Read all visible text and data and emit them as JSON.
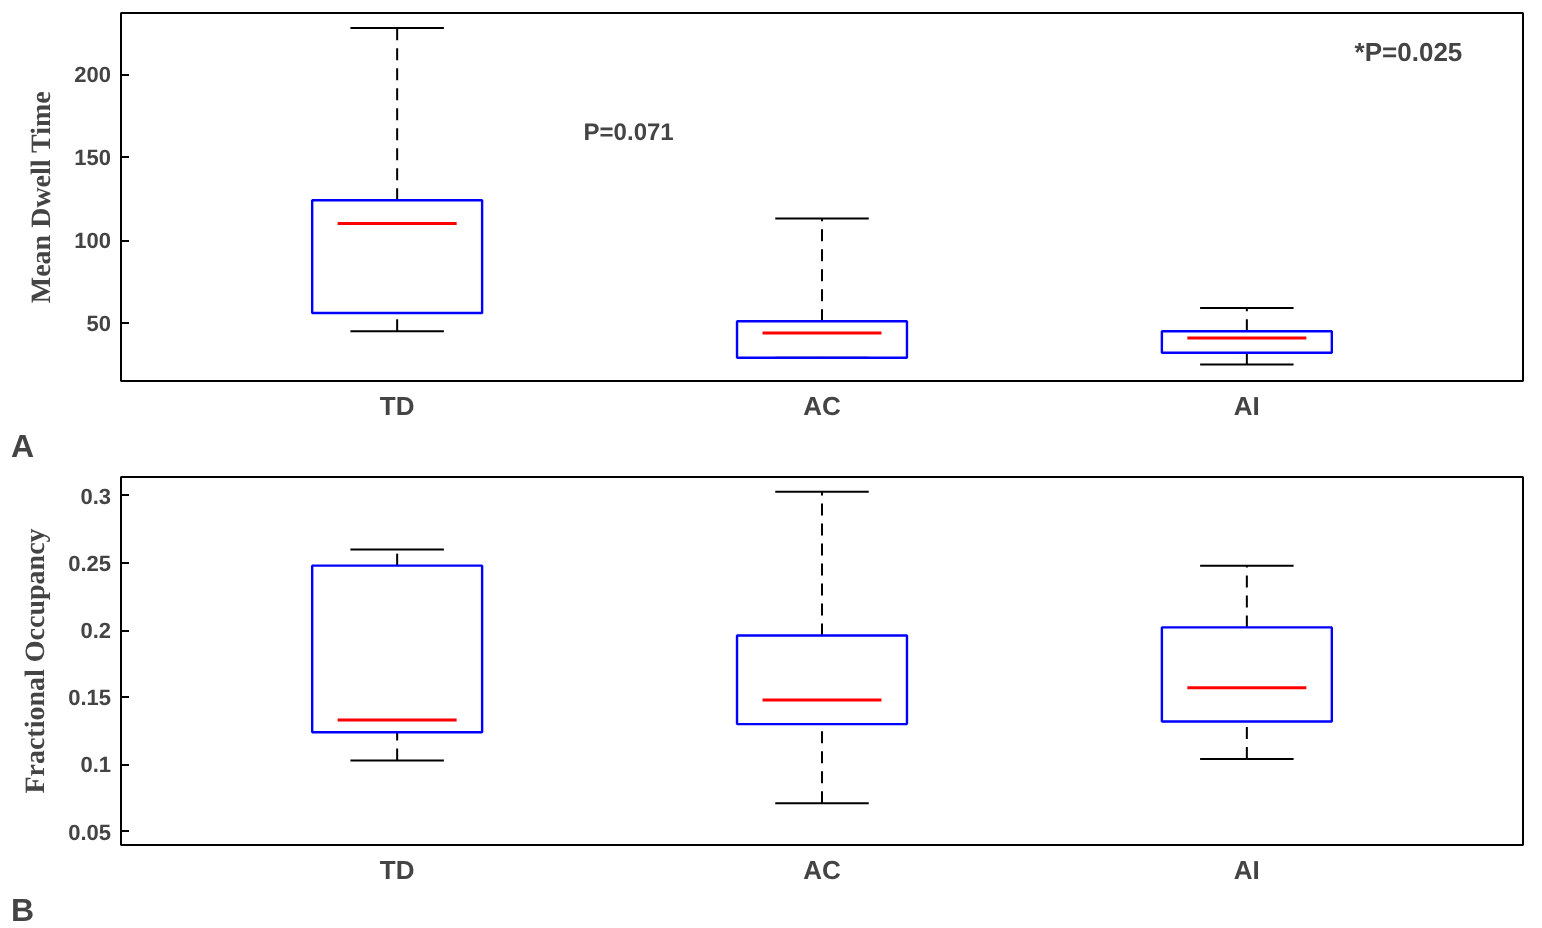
{
  "chart_data": [
    {
      "type": "box",
      "ylabel": "Mean Dwell Time",
      "categories": [
        "TD",
        "AC",
        "AI"
      ],
      "ylim": [
        15,
        237
      ],
      "yticks": [
        50,
        100,
        150,
        200
      ],
      "grid": false,
      "annotations": [
        "A",
        "P=0.071",
        "*P=0.025"
      ],
      "series": [
        {
          "color": "#0000ff",
          "boxes": [
            {
              "low": 45,
              "q1": 56,
              "median": 110,
              "q3": 124,
              "high": 228
            },
            {
              "low": 29,
              "q1": 29,
              "median": 44,
              "q3": 51,
              "high": 113
            },
            {
              "low": 25,
              "q1": 32,
              "median": 41,
              "q3": 45,
              "high": 59
            }
          ]
        }
      ]
    },
    {
      "type": "box",
      "ylabel": "Fractional Occupancy",
      "categories": [
        "TD",
        "AC",
        "AI"
      ],
      "ylim": [
        0.04,
        0.314
      ],
      "yticks": [
        0.05,
        0.1,
        0.15,
        0.2,
        0.25,
        0.3
      ],
      "grid": false,
      "annotations": [
        "B"
      ],
      "series": [
        {
          "color": "#0000ff",
          "boxes": [
            {
              "low": 0.103,
              "q1": 0.124,
              "median": 0.133,
              "q3": 0.248,
              "high": 0.26
            },
            {
              "low": 0.071,
              "q1": 0.13,
              "median": 0.148,
              "q3": 0.196,
              "high": 0.303
            },
            {
              "low": 0.104,
              "q1": 0.132,
              "median": 0.157,
              "q3": 0.202,
              "high": 0.248
            }
          ]
        }
      ]
    }
  ]
}
